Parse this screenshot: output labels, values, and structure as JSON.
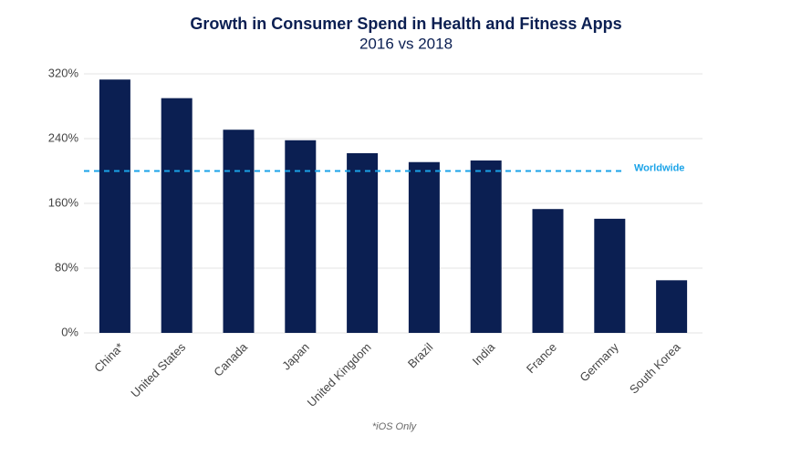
{
  "chart_data": {
    "type": "bar",
    "title": "Growth in Consumer Spend in Health and Fitness Apps",
    "subtitle": "2016 vs 2018",
    "categories": [
      "China*",
      "United States",
      "Canada",
      "Japan",
      "United Kingdom",
      "Brazil",
      "India",
      "France",
      "Germany",
      "South Korea"
    ],
    "values": [
      313,
      290,
      251,
      238,
      222,
      211,
      213,
      153,
      141,
      65
    ],
    "color": "#0b1f52",
    "ylim": [
      0,
      320
    ],
    "yticks": [
      {
        "value": 0,
        "label": "0%"
      },
      {
        "value": 80,
        "label": "80%"
      },
      {
        "value": 160,
        "label": "160%"
      },
      {
        "value": 240,
        "label": "240%"
      },
      {
        "value": 320,
        "label": "320%"
      }
    ],
    "grid": true,
    "reference_line": {
      "label": "Worldwide",
      "value": 200,
      "color": "#1aa3e8"
    },
    "footnote": "*iOS Only"
  }
}
